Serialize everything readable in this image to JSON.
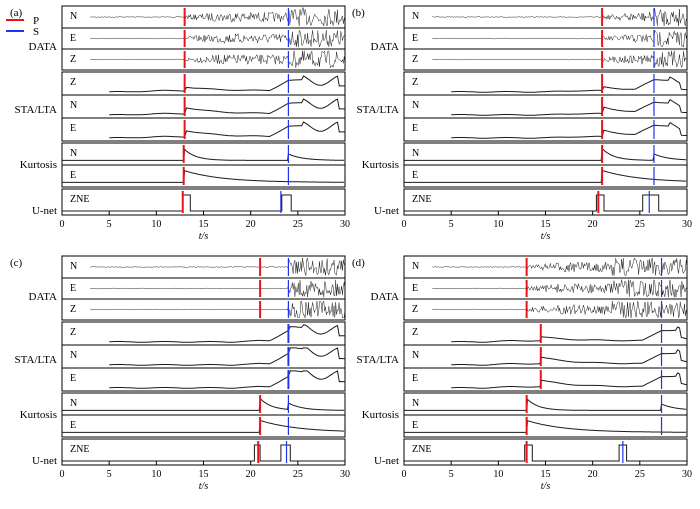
{
  "legend": {
    "items": [
      {
        "label": "P",
        "color": "#e8141c"
      },
      {
        "label": "S",
        "color": "#2233ee"
      }
    ]
  },
  "group_labels": {
    "data": "DATA",
    "stalta": "STA/LTA",
    "kurtosis": "Kurtosis",
    "unet": "U-net"
  },
  "trace_labels": {
    "n": "N",
    "e": "E",
    "z": "Z",
    "zne": "ZNE"
  },
  "axis": {
    "xlabel": "t/s",
    "ticks": [
      0,
      5,
      10,
      15,
      20,
      25,
      30
    ],
    "xlim": [
      0,
      30
    ]
  },
  "colors": {
    "p_pick": "#e8141c",
    "s_pick": "#2233ee",
    "trace": "#1a1a1a"
  },
  "chart_data": [
    {
      "panel": "(a)",
      "type": "line",
      "x_range": [
        0,
        30
      ],
      "picks": {
        "data": {
          "p": 13.0,
          "s": 24.0
        },
        "stalta": {
          "p": 13.0,
          "s": 24.0
        },
        "kurtosis": {
          "p": 12.9,
          "s": 24.0
        },
        "unet": {
          "p": 12.8,
          "s": 23.2
        }
      },
      "data_onsets": {
        "noise_end": 13.0,
        "s_arrival": 24.0,
        "signal_end": 29.0
      },
      "unet_boxes": [
        {
          "from": 12.8,
          "to": 13.6
        },
        {
          "from": 23.3,
          "to": 24.3
        }
      ]
    },
    {
      "panel": "(b)",
      "type": "line",
      "x_range": [
        0,
        30
      ],
      "picks": {
        "data": {
          "p": 21.0,
          "s": 26.5
        },
        "stalta": {
          "p": 21.0,
          "s": 26.5
        },
        "kurtosis": {
          "p": 21.0,
          "s": 26.5
        },
        "unet": {
          "p": 20.6,
          "s": 26.0
        }
      },
      "data_onsets": {
        "noise_end": 21.0,
        "s_arrival": 26.5,
        "signal_end": 30.0
      },
      "unet_boxes": [
        {
          "from": 20.4,
          "to": 21.2
        },
        {
          "from": 25.3,
          "to": 27.0
        }
      ]
    },
    {
      "panel": "(c)",
      "type": "line",
      "x_range": [
        0,
        30
      ],
      "picks": {
        "data": {
          "p": 21.0,
          "s": 24.0
        },
        "stalta": {
          "p": 24.0,
          "s": 24.0
        },
        "kurtosis": {
          "p": 21.0,
          "s": 24.0
        },
        "unet": {
          "p": 20.8,
          "s": 23.8
        }
      },
      "data_onsets": {
        "noise_end": 23.8,
        "s_arrival": 24.0,
        "signal_end": 27.0
      },
      "unet_boxes": [
        {
          "from": 20.4,
          "to": 21.0
        },
        {
          "from": 23.2,
          "to": 24.2
        }
      ]
    },
    {
      "panel": "(d)",
      "type": "line",
      "x_range": [
        0,
        30
      ],
      "picks": {
        "data": {
          "p": 13.0,
          "s": 27.3
        },
        "stalta": {
          "p": 14.5,
          "s": 27.3
        },
        "kurtosis": {
          "p": 13.0,
          "s": 27.3
        },
        "unet": {
          "p": 13.0,
          "s": 23.2
        }
      },
      "data_onsets": {
        "noise_end": 13.0,
        "s_arrival": 22.0,
        "signal_end": 30.0
      },
      "unet_boxes": [
        {
          "from": 12.8,
          "to": 13.6
        },
        {
          "from": 22.8,
          "to": 23.6
        }
      ]
    }
  ]
}
